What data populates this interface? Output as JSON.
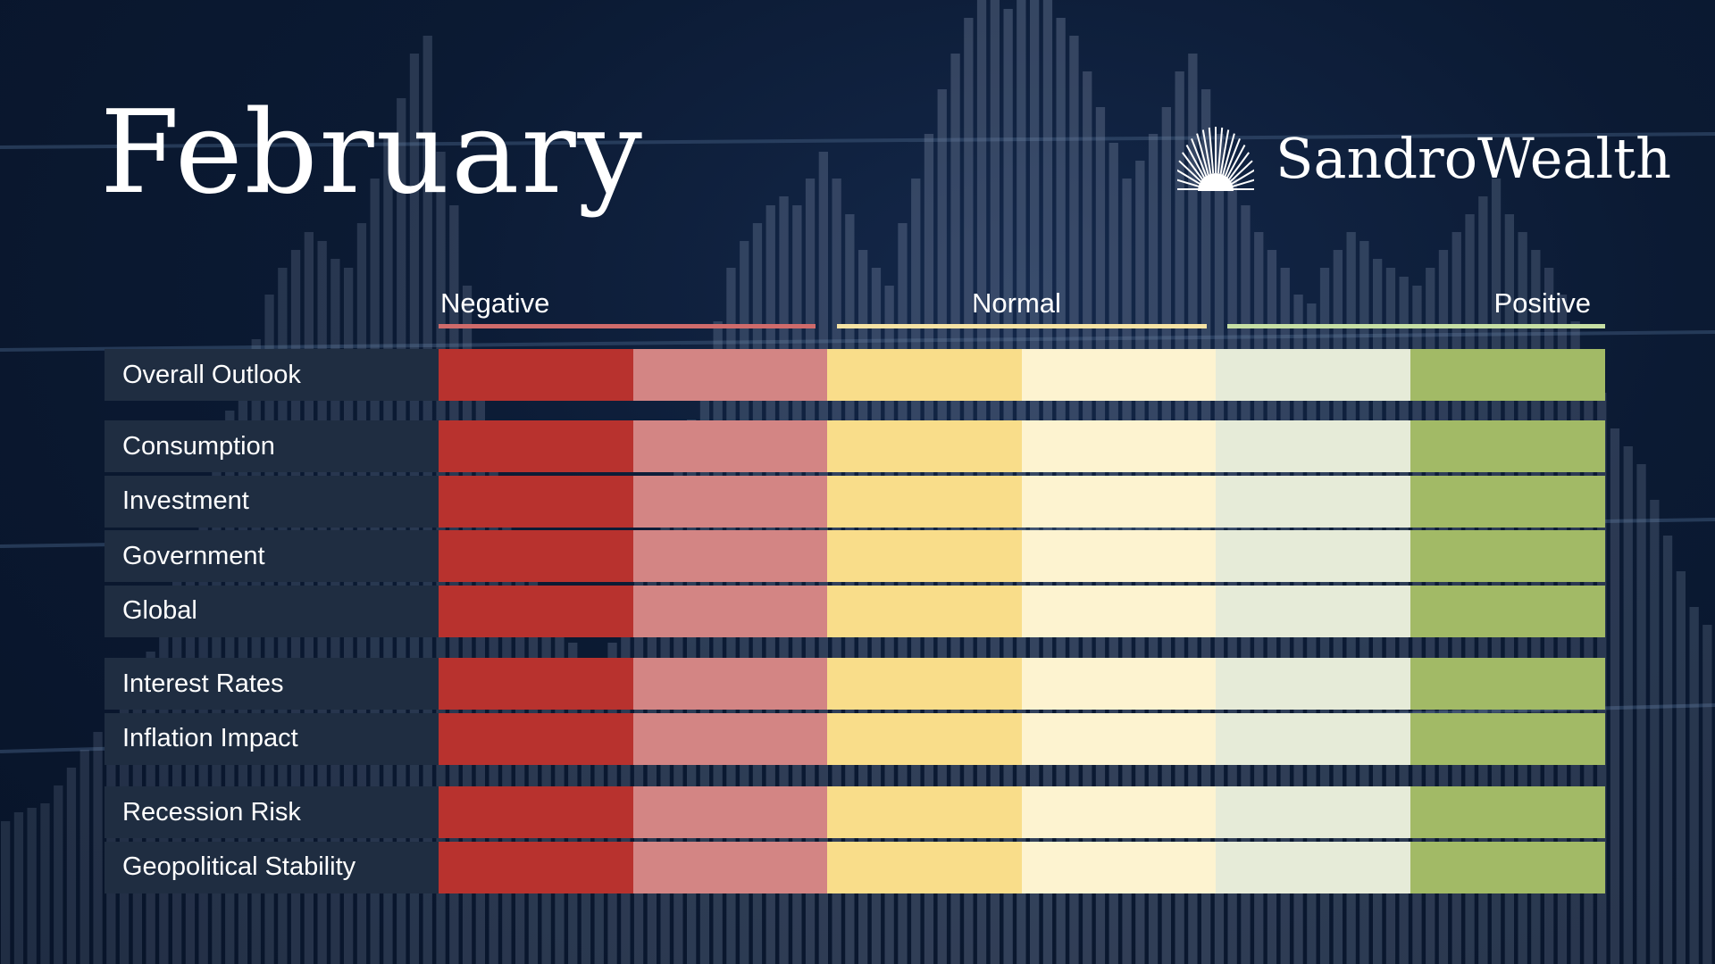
{
  "title": "February",
  "brand": {
    "name": "SandroWealth",
    "logo_icon": "sunrise-rays-icon"
  },
  "scale": {
    "negative_label": "Negative",
    "normal_label": "Normal",
    "positive_label": "Positive",
    "line_colors": [
      "#cf6b6b",
      "#f6e3a4",
      "#c6dfa4"
    ],
    "cell_colors": [
      "#b8322e",
      "#d38584",
      "#f9dd8a",
      "#fdf3d0",
      "#e6ebd8",
      "#a2ba66"
    ]
  },
  "groups": [
    {
      "rows": [
        "Overall Outlook"
      ]
    },
    {
      "rows": [
        "Consumption",
        "Investment",
        "Government",
        "Global"
      ]
    },
    {
      "rows": [
        "Interest Rates",
        "Inflation Impact"
      ]
    },
    {
      "rows": [
        "Recession Risk",
        "Geopolitical Stability"
      ]
    }
  ]
}
